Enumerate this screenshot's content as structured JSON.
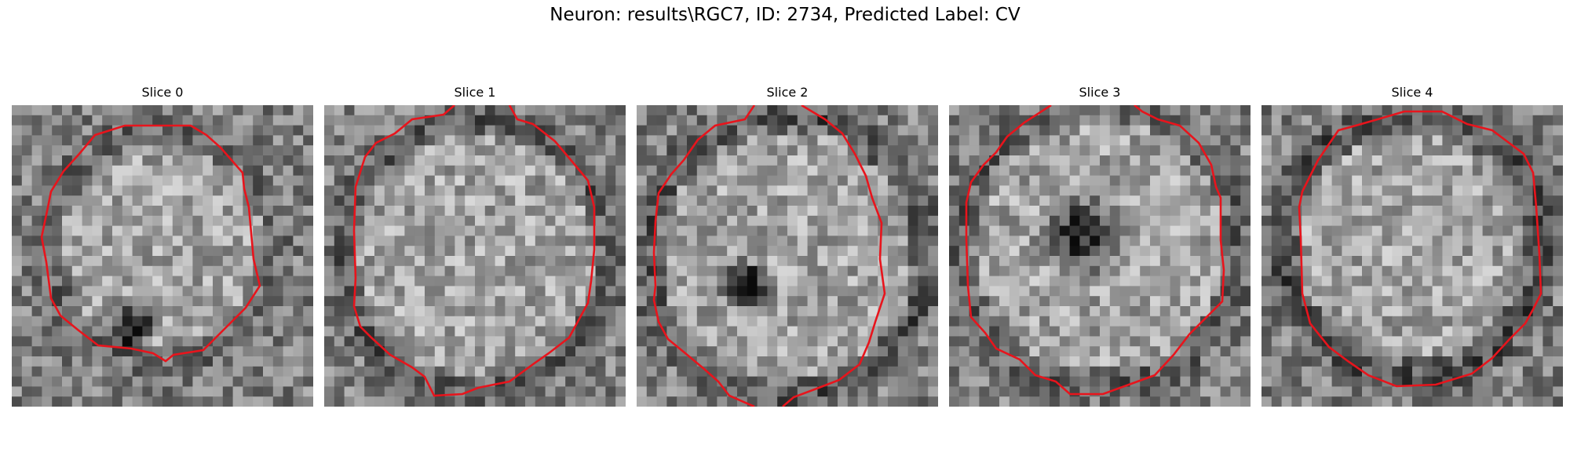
{
  "figure": {
    "title": "Neuron: results\\RGC7, ID: 2734, Predicted Label: CV"
  },
  "contour_color": "#e8141c",
  "panels": [
    {
      "title": "Slice 0",
      "pattern": "bright ring-bounded cell body, dark spot at lower center"
    },
    {
      "title": "Slice 1",
      "pattern": "bright cell body with dark membrane ring"
    },
    {
      "title": "Slice 2",
      "pattern": "cell body with dark blob lower left of center"
    },
    {
      "title": "Slice 3",
      "pattern": "cell body with dark center region"
    },
    {
      "title": "Slice 4",
      "pattern": "bright cell body with dark outer ring"
    }
  ]
}
